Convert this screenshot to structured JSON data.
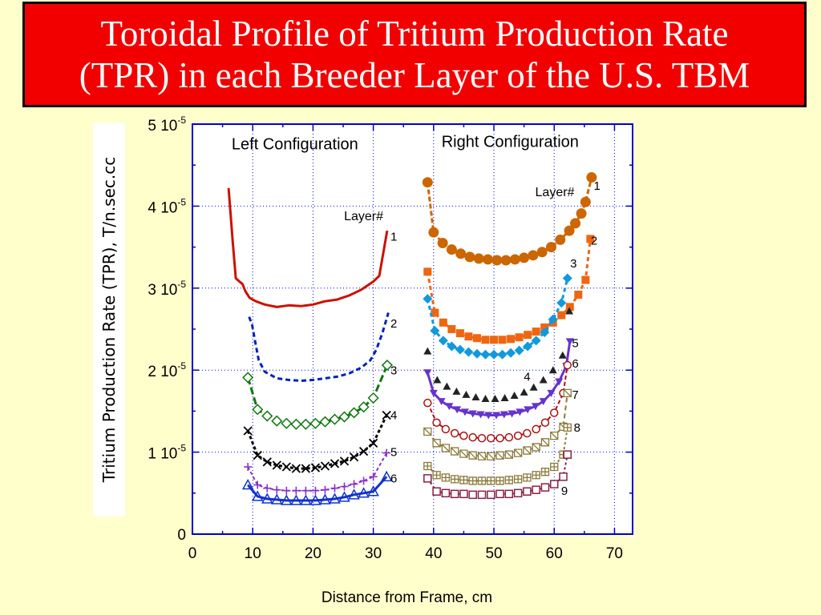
{
  "title": {
    "line1": "Toroidal Profile of Tritium Production Rate",
    "line2": "(TPR) in each Breeder Layer of the U.S. TBM"
  },
  "chart_data": {
    "type": "line",
    "xlabel": "Distance from Frame, cm",
    "ylabel": "Tritium Production Rate (TPR), T/n.sec.cc",
    "xlim": [
      0,
      73
    ],
    "ylim": [
      0,
      5e-05
    ],
    "x_ticks": [
      0,
      10,
      20,
      30,
      40,
      50,
      60,
      70
    ],
    "y_ticks": [
      {
        "mant": "0",
        "exp": ""
      },
      {
        "mant": "1 10",
        "exp": "-5"
      },
      {
        "mant": "2 10",
        "exp": "-5"
      },
      {
        "mant": "3 10",
        "exp": "-5"
      },
      {
        "mant": "4 10",
        "exp": "-5"
      },
      {
        "mant": "5 10",
        "exp": "-5"
      }
    ],
    "grid": true,
    "annotations": [
      {
        "id": "left-config",
        "text": "Left Configuration",
        "x": 17.0,
        "y": 4.69e-05,
        "size": 20
      },
      {
        "id": "right-config",
        "text": "Right Configuration",
        "x": 52.7,
        "y": 4.72e-05,
        "size": 20
      },
      {
        "id": "left-layer-label",
        "text": "Layer#",
        "x": 28.4,
        "y": 3.83e-05,
        "size": 16
      },
      {
        "id": "right-layer-label",
        "text": "Layer#",
        "x": 60.1,
        "y": 4.12e-05,
        "size": 16
      },
      {
        "id": "L1",
        "text": "1",
        "x": 33.4,
        "y": 3.58e-05,
        "size": 15
      },
      {
        "id": "L2",
        "text": "2",
        "x": 33.4,
        "y": 2.52e-05,
        "size": 15
      },
      {
        "id": "L3",
        "text": "3",
        "x": 33.4,
        "y": 1.95e-05,
        "size": 15
      },
      {
        "id": "L4",
        "text": "4",
        "x": 33.4,
        "y": 1.4e-05,
        "size": 15
      },
      {
        "id": "L5",
        "text": "5",
        "x": 33.4,
        "y": 9.5e-06,
        "size": 15
      },
      {
        "id": "L6",
        "text": "6",
        "x": 33.4,
        "y": 6.3e-06,
        "size": 15
      },
      {
        "id": "R1",
        "text": "1",
        "x": 67.1,
        "y": 4.2e-05,
        "size": 15
      },
      {
        "id": "R2",
        "text": "2",
        "x": 66.6,
        "y": 3.53e-05,
        "size": 15
      },
      {
        "id": "R3",
        "text": "3",
        "x": 63.2,
        "y": 3.25e-05,
        "size": 15
      },
      {
        "id": "R4",
        "text": "4",
        "x": 55.5,
        "y": 1.87e-05,
        "size": 15
      },
      {
        "id": "R5",
        "text": "5",
        "x": 63.5,
        "y": 2.28e-05,
        "size": 15
      },
      {
        "id": "R6",
        "text": "6",
        "x": 63.5,
        "y": 2.03e-05,
        "size": 15
      },
      {
        "id": "R7",
        "text": "7",
        "x": 63.5,
        "y": 1.65e-05,
        "size": 15
      },
      {
        "id": "R8",
        "text": "8",
        "x": 63.8,
        "y": 1.25e-05,
        "size": 15
      },
      {
        "id": "R9",
        "text": "9",
        "x": 61.7,
        "y": 4.8e-06,
        "size": 15
      }
    ],
    "series": [
      {
        "color": "#CC1100",
        "dash": "",
        "width": 3,
        "marker": "none",
        "x": [
          6.0,
          6.7,
          7.2,
          7.8,
          8.3,
          8.8,
          9.5,
          10.5,
          12,
          14,
          16,
          18,
          20,
          22,
          24,
          26,
          28,
          30,
          31,
          32.3
        ],
        "y": [
          4.22e-05,
          3.55e-05,
          3.12e-05,
          3.08e-05,
          3.05e-05,
          2.96e-05,
          2.88e-05,
          2.84e-05,
          2.8e-05,
          2.77e-05,
          2.79e-05,
          2.78e-05,
          2.8e-05,
          2.84e-05,
          2.86e-05,
          2.91e-05,
          2.98e-05,
          3.08e-05,
          3.15e-05,
          3.7e-05
        ]
      },
      {
        "color": "#0022BB",
        "dash": "6,4",
        "width": 3,
        "marker": "none",
        "x": [
          9.4,
          9.9,
          10.4,
          11.0,
          12,
          14,
          16,
          18,
          20,
          22,
          24,
          26,
          28,
          29.5,
          30.5,
          31.5,
          32.5
        ],
        "y": [
          2.65e-05,
          2.55e-05,
          2.35e-05,
          2.12e-05,
          1.98e-05,
          1.9e-05,
          1.88e-05,
          1.87e-05,
          1.88e-05,
          1.9e-05,
          1.92e-05,
          1.96e-05,
          2.03e-05,
          2.12e-05,
          2.25e-05,
          2.45e-05,
          2.7e-05
        ]
      },
      {
        "color": "#117711",
        "dash": "9,4",
        "width": 3,
        "marker": "diamond",
        "x": [
          9.2,
          10.8,
          12.4,
          14,
          15.6,
          17.2,
          18.8,
          20.4,
          22,
          23.6,
          25.2,
          26.8,
          28.4,
          30,
          32.3
        ],
        "y": [
          1.91e-05,
          1.52e-05,
          1.44e-05,
          1.38e-05,
          1.35e-05,
          1.34e-05,
          1.34e-05,
          1.35e-05,
          1.37e-05,
          1.4e-05,
          1.43e-05,
          1.48e-05,
          1.55e-05,
          1.66e-05,
          2.06e-05
        ]
      },
      {
        "color": "#000000",
        "dash": "4,3",
        "width": 3,
        "marker": "x",
        "x": [
          9.2,
          10.8,
          12.4,
          14,
          15.6,
          17.2,
          18.8,
          20.4,
          22,
          23.6,
          25.2,
          26.8,
          28.4,
          30,
          32.2
        ],
        "y": [
          1.26e-05,
          9.6e-06,
          8.8e-06,
          8.4e-06,
          8.2e-06,
          8e-06,
          8e-06,
          8.1e-06,
          8.3e-06,
          8.6e-06,
          8.9e-06,
          9.4e-06,
          1.01e-05,
          1.11e-05,
          1.45e-05
        ]
      },
      {
        "color": "#8833CC",
        "dash": "4,3",
        "width": 2,
        "marker": "plus",
        "x": [
          9.2,
          10.8,
          12.4,
          14,
          15.6,
          17.2,
          18.8,
          20.4,
          22,
          23.6,
          25.2,
          26.8,
          28.4,
          30,
          32.2
        ],
        "y": [
          8.2e-06,
          6e-06,
          5.6e-06,
          5.4e-06,
          5.3e-06,
          5.3e-06,
          5.3e-06,
          5.3e-06,
          5.4e-06,
          5.6e-06,
          5.8e-06,
          6.1e-06,
          6.5e-06,
          7e-06,
          9.9e-06
        ]
      },
      {
        "color": "#1133CC",
        "dash": "",
        "width": 3,
        "marker": "triangle",
        "x": [
          9.2,
          10.8,
          12.4,
          14,
          15.6,
          17.2,
          18.8,
          20.4,
          22,
          23.6,
          25.2,
          26.8,
          28.4,
          30,
          32.2
        ],
        "y": [
          6e-06,
          4.6e-06,
          4.3e-06,
          4.2e-06,
          4.1e-06,
          4.1e-06,
          4.1e-06,
          4.1e-06,
          4.2e-06,
          4.3e-06,
          4.5e-06,
          4.8e-06,
          5e-06,
          5.2e-06,
          7e-06
        ]
      },
      {
        "color": "#CC6600",
        "dash": "6,3",
        "width": 3,
        "marker": "circle",
        "x": [
          39.0,
          40.0,
          41.5,
          43,
          44.5,
          46,
          47.5,
          49,
          50.5,
          52,
          53.5,
          55,
          56.5,
          58,
          59.5,
          61,
          62.5,
          63.5,
          64.5,
          65.2,
          66.2
        ],
        "y": [
          4.29e-05,
          3.68e-05,
          3.55e-05,
          3.47e-05,
          3.42e-05,
          3.38e-05,
          3.36e-05,
          3.35e-05,
          3.34e-05,
          3.34e-05,
          3.35e-05,
          3.37e-05,
          3.4e-05,
          3.44e-05,
          3.5e-05,
          3.59e-05,
          3.7e-05,
          3.79e-05,
          3.91e-05,
          4.05e-05,
          4.35e-05
        ]
      },
      {
        "color": "#EE6611",
        "dash": "5,4",
        "width": 3,
        "marker": "square",
        "x": [
          39.0,
          40.2,
          41.6,
          43,
          44.4,
          45.8,
          47.2,
          48.6,
          50,
          51.4,
          52.8,
          54.2,
          55.6,
          57,
          58.4,
          59.8,
          61.2,
          62.6,
          64,
          65.2,
          66.0
        ],
        "y": [
          3.2e-05,
          2.7e-05,
          2.58e-05,
          2.5e-05,
          2.45e-05,
          2.41e-05,
          2.39e-05,
          2.37e-05,
          2.37e-05,
          2.37e-05,
          2.38e-05,
          2.4e-05,
          2.43e-05,
          2.47e-05,
          2.52e-05,
          2.58e-05,
          2.67e-05,
          2.77e-05,
          2.92e-05,
          3.1e-05,
          3.6e-05
        ]
      },
      {
        "color": "#1199DD",
        "dash": "5,4",
        "width": 3,
        "marker": "diamond-filled",
        "x": [
          39.0,
          40.2,
          41.6,
          43,
          44.4,
          45.8,
          47.2,
          48.6,
          50,
          51.4,
          52.8,
          54.2,
          55.6,
          57,
          58.4,
          59.8,
          61.2,
          62.2
        ],
        "y": [
          2.87e-05,
          2.48e-05,
          2.36e-05,
          2.29e-05,
          2.25e-05,
          2.22e-05,
          2.2e-05,
          2.19e-05,
          2.19e-05,
          2.19e-05,
          2.21e-05,
          2.24e-05,
          2.29e-05,
          2.36e-05,
          2.46e-05,
          2.62e-05,
          2.82e-05,
          3.12e-05
        ]
      },
      {
        "color": "#222222",
        "dash": "",
        "width": 0,
        "marker": "triangle-filled",
        "x": [
          39.0,
          40.6,
          42.2,
          43.8,
          45.4,
          47,
          48.6,
          50.2,
          51.8,
          53.4,
          55,
          56.6,
          58.2,
          59.8,
          61.4,
          62.5
        ],
        "y": [
          2.23e-05,
          1.88e-05,
          1.8e-05,
          1.74e-05,
          1.7e-05,
          1.67e-05,
          1.65e-05,
          1.65e-05,
          1.66e-05,
          1.69e-05,
          1.73e-05,
          1.79e-05,
          1.88e-05,
          2e-05,
          2.18e-05,
          2.72e-05
        ]
      },
      {
        "color": "#6633CC",
        "dash": "",
        "width": 3,
        "marker": "triangle-down",
        "x": [
          39.0,
          40.0,
          41.3,
          42.6,
          43.9,
          45.2,
          46.5,
          47.8,
          49.1,
          50.4,
          51.7,
          53,
          54.3,
          55.6,
          56.9,
          58.2,
          59.5,
          60.8,
          62.0,
          62.6
        ],
        "y": [
          1.97e-05,
          1.72e-05,
          1.62e-05,
          1.56e-05,
          1.52e-05,
          1.49e-05,
          1.47e-05,
          1.46e-05,
          1.45e-05,
          1.45e-05,
          1.46e-05,
          1.47e-05,
          1.49e-05,
          1.52e-05,
          1.56e-05,
          1.62e-05,
          1.72e-05,
          1.86e-05,
          2.05e-05,
          2.35e-05
        ]
      },
      {
        "color": "#AA1111",
        "dash": "5,3",
        "width": 2,
        "marker": "circle-open",
        "x": [
          39.0,
          40.5,
          42,
          43.5,
          45,
          46.5,
          48,
          49.5,
          51,
          52.5,
          54,
          55.5,
          57,
          58.5,
          60,
          61.5,
          62.2
        ],
        "y": [
          1.6e-05,
          1.36e-05,
          1.28e-05,
          1.23e-05,
          1.2e-05,
          1.18e-05,
          1.17e-05,
          1.17e-05,
          1.17e-05,
          1.18e-05,
          1.2e-05,
          1.23e-05,
          1.28e-05,
          1.36e-05,
          1.48e-05,
          1.72e-05,
          2.06e-05
        ]
      },
      {
        "color": "#8A7A3A",
        "dash": "6,4",
        "width": 2,
        "marker": "square-slash",
        "x": [
          39.0,
          40.5,
          42,
          43.5,
          45,
          46.5,
          48,
          49.5,
          51,
          52.5,
          54,
          55.5,
          57,
          58.5,
          60,
          61.5,
          62.2
        ],
        "y": [
          1.25e-05,
          1.11e-05,
          1.05e-05,
          1.01e-05,
          9.8e-06,
          9.6e-06,
          9.5e-06,
          9.5e-06,
          9.6e-06,
          9.7e-06,
          9.9e-06,
          1.02e-05,
          1.06e-05,
          1.12e-05,
          1.2e-05,
          1.31e-05,
          1.72e-05
        ]
      },
      {
        "color": "#8A7A3A",
        "dash": "3,3",
        "width": 2,
        "marker": "square-plus",
        "x": [
          39.0,
          40.5,
          42,
          43.5,
          45,
          46.5,
          48,
          49.5,
          51,
          52.5,
          54,
          55.5,
          57,
          58.5,
          60,
          61.5,
          62.2
        ],
        "y": [
          8.3e-06,
          7.2e-06,
          6.9e-06,
          6.7e-06,
          6.6e-06,
          6.5e-06,
          6.5e-06,
          6.5e-06,
          6.5e-06,
          6.6e-06,
          6.7e-06,
          6.9e-06,
          7.2e-06,
          7.6e-06,
          8.2e-06,
          9.7e-06,
          1.3e-05
        ]
      },
      {
        "color": "#882244",
        "dash": "3,3",
        "width": 2,
        "marker": "square-open",
        "x": [
          39.0,
          40.5,
          42,
          43.5,
          45,
          46.5,
          48,
          49.5,
          51,
          52.5,
          54,
          55.5,
          57,
          58.5,
          60,
          61.5,
          62.2
        ],
        "y": [
          6.8e-06,
          5.2e-06,
          5e-06,
          4.9e-06,
          4.9e-06,
          4.8e-06,
          4.8e-06,
          4.8e-06,
          4.9e-06,
          4.9e-06,
          5e-06,
          5.2e-06,
          5.4e-06,
          5.7e-06,
          6.1e-06,
          7e-06,
          9.7e-06
        ]
      }
    ]
  }
}
